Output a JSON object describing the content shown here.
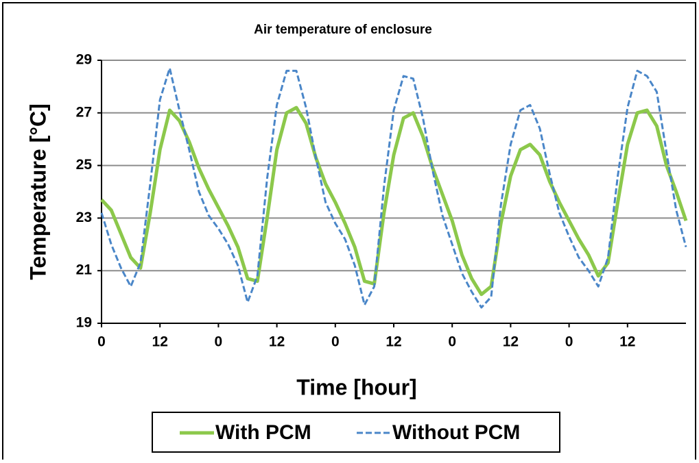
{
  "chart_data": {
    "type": "line",
    "title": "Air temperature of enclosure",
    "x_label": "Time [hour]",
    "y_label": "Temperature [°C]",
    "x": [
      0,
      2,
      4,
      6,
      8,
      10,
      12,
      14,
      16,
      18,
      20,
      22,
      24,
      26,
      28,
      30,
      32,
      34,
      36,
      38,
      40,
      42,
      44,
      46,
      48,
      50,
      52,
      54,
      56,
      58,
      60,
      62,
      64,
      66,
      68,
      70,
      72,
      74,
      76,
      78,
      80,
      82,
      84,
      86,
      88,
      90,
      92,
      94,
      96,
      98,
      100,
      102,
      104,
      106,
      108,
      110,
      112,
      114,
      116,
      118,
      120
    ],
    "series": [
      {
        "name": "With PCM",
        "color": "#8cc84b",
        "dash": false,
        "values": [
          23.7,
          23.3,
          22.4,
          21.5,
          21.1,
          23.2,
          25.6,
          27.1,
          26.7,
          25.9,
          24.9,
          24.1,
          23.4,
          22.7,
          21.9,
          20.7,
          20.6,
          23.0,
          25.6,
          27.0,
          27.2,
          26.6,
          25.3,
          24.3,
          23.6,
          22.8,
          21.9,
          20.6,
          20.5,
          23.2,
          25.4,
          26.8,
          27.0,
          26.1,
          24.9,
          23.9,
          22.9,
          21.6,
          20.7,
          20.1,
          20.4,
          22.8,
          24.6,
          25.6,
          25.8,
          25.4,
          24.4,
          23.6,
          22.9,
          22.2,
          21.6,
          20.8,
          21.3,
          23.6,
          25.8,
          27.0,
          27.1,
          26.5,
          25.0,
          24.0,
          22.9
        ]
      },
      {
        "name": "Without PCM",
        "color": "#4a86c8",
        "dash": true,
        "values": [
          23.2,
          22.0,
          21.1,
          20.4,
          21.3,
          24.3,
          27.5,
          28.7,
          27.1,
          25.6,
          24.0,
          23.1,
          22.6,
          22.0,
          21.2,
          19.8,
          20.8,
          24.5,
          27.3,
          28.6,
          28.6,
          27.2,
          25.3,
          23.6,
          22.8,
          22.2,
          21.2,
          19.7,
          20.4,
          24.2,
          27.1,
          28.4,
          28.3,
          26.8,
          24.8,
          23.1,
          22.0,
          20.9,
          20.2,
          19.6,
          20.0,
          23.5,
          25.8,
          27.1,
          27.3,
          26.4,
          24.7,
          23.2,
          22.3,
          21.5,
          21.0,
          20.4,
          21.5,
          24.6,
          27.2,
          28.6,
          28.4,
          27.8,
          25.5,
          23.3,
          21.9
        ]
      }
    ],
    "xlim": [
      0,
      120
    ],
    "xticks": [
      0,
      12,
      {
        "value": 24,
        "label": "0"
      },
      {
        "value": 36,
        "label": "12"
      },
      {
        "value": 48,
        "label": "0"
      },
      {
        "value": 60,
        "label": "12"
      },
      {
        "value": 72,
        "label": "0"
      },
      {
        "value": 84,
        "label": "12"
      },
      {
        "value": 96,
        "label": "0"
      },
      {
        "value": 108,
        "label": "12"
      }
    ],
    "ylim": [
      19,
      29
    ],
    "yticks": [
      19,
      21,
      23,
      25,
      27,
      29
    ],
    "grid": true
  }
}
